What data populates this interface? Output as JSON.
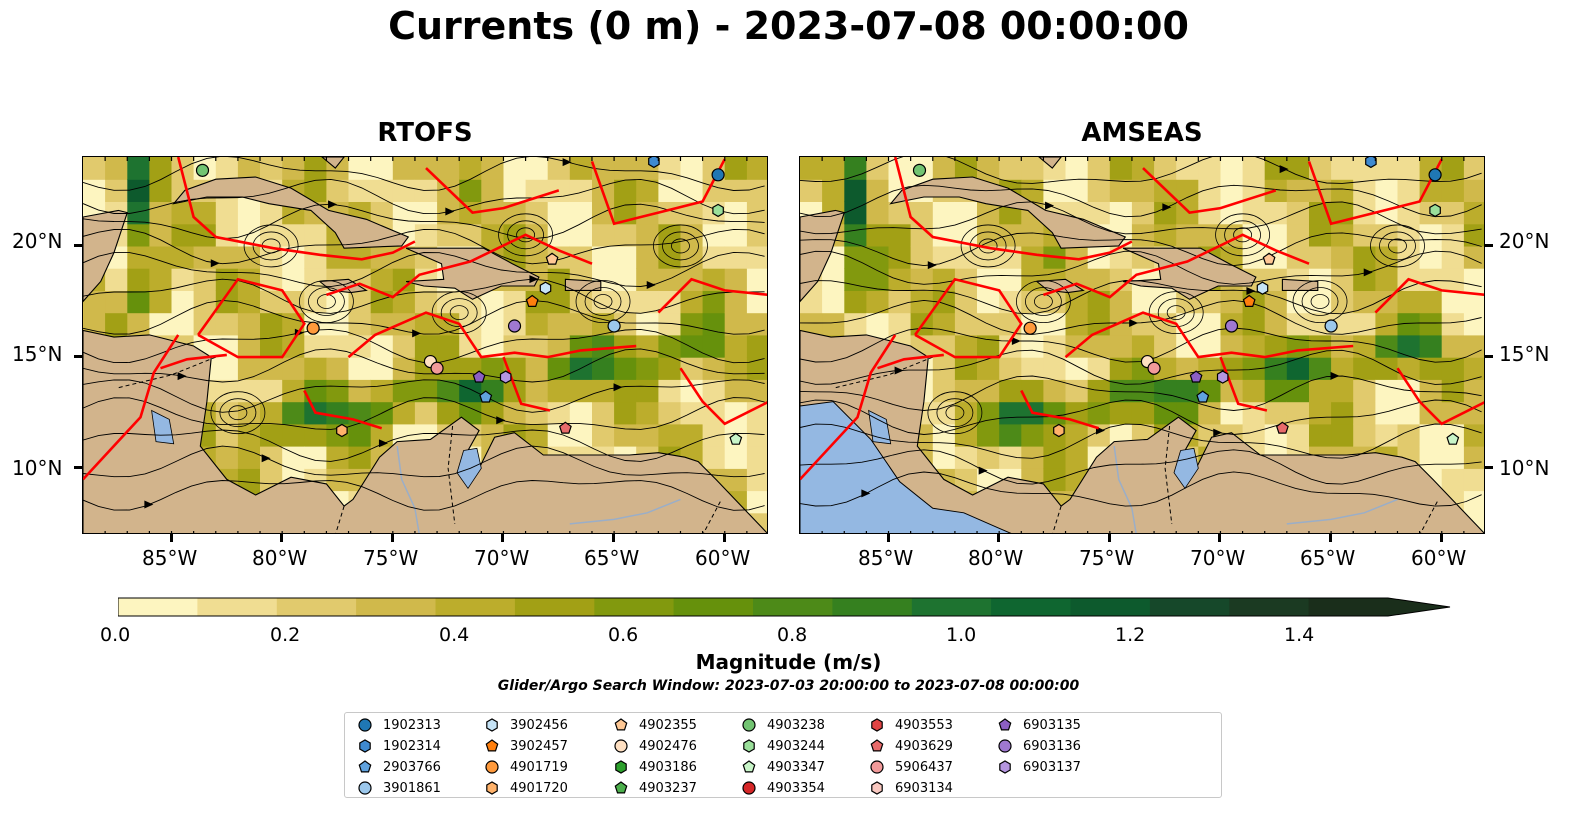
{
  "title": "Currents (0 m) - 2023-07-08 00:00:00",
  "panels": [
    {
      "title": "RTOFS"
    },
    {
      "title": "AMSEAS"
    }
  ],
  "axes": {
    "x_ticks": [
      "85°W",
      "80°W",
      "75°W",
      "70°W",
      "65°W",
      "60°W"
    ],
    "y_ticks": [
      "20°N",
      "15°N",
      "10°N"
    ],
    "lon_range": [
      -89,
      -58
    ],
    "lat_range": [
      7,
      24
    ]
  },
  "colorbar": {
    "label": "Magnitude (m/s)",
    "ticks": [
      "0.0",
      "0.2",
      "0.4",
      "0.6",
      "0.8",
      "1.0",
      "1.2",
      "1.4"
    ],
    "range": [
      0,
      1.5
    ],
    "extend": "max",
    "colors": [
      "#fdf5c0",
      "#f0dd92",
      "#e1ca6d",
      "#d0b94b",
      "#bcad2c",
      "#a2a015",
      "#82990e",
      "#66910c",
      "#4d8a18",
      "#35801f",
      "#1e7330",
      "#0f6630",
      "#0d5a2d",
      "#16482a",
      "#1b3a22",
      "#1a2e1b"
    ]
  },
  "search_window": "Glider/Argo Search Window: 2023-07-03 20:00:00 to 2023-07-08 00:00:00",
  "colors": {
    "land": "#d2b48c",
    "water_fill": "#94b8e2",
    "eez": "#ff0000"
  },
  "legend": [
    {
      "id": "1902313",
      "marker": "circle",
      "color": "#1f77b4"
    },
    {
      "id": "1902314",
      "marker": "hexagon",
      "color": "#3f8ad0"
    },
    {
      "id": "2903766",
      "marker": "pentagon",
      "color": "#60a2de"
    },
    {
      "id": "3901861",
      "marker": "circle",
      "color": "#9cc8ec"
    },
    {
      "id": "3902456",
      "marker": "hexagon",
      "color": "#c6e4f7"
    },
    {
      "id": "3902457",
      "marker": "pentagon",
      "color": "#ff7f0e"
    },
    {
      "id": "4901719",
      "marker": "circle",
      "color": "#ff9a3c"
    },
    {
      "id": "4901720",
      "marker": "hexagon",
      "color": "#ffb26b"
    },
    {
      "id": "4902355",
      "marker": "pentagon",
      "color": "#ffc895"
    },
    {
      "id": "4902476",
      "marker": "circle",
      "color": "#ffe0c2"
    },
    {
      "id": "4903186",
      "marker": "hexagon",
      "color": "#2ca02c"
    },
    {
      "id": "4903237",
      "marker": "pentagon",
      "color": "#4caf4c"
    },
    {
      "id": "4903238",
      "marker": "circle",
      "color": "#72c472"
    },
    {
      "id": "4903244",
      "marker": "hexagon",
      "color": "#9adf9a"
    },
    {
      "id": "4903347",
      "marker": "pentagon",
      "color": "#c8f5c8"
    },
    {
      "id": "4903354",
      "marker": "circle",
      "color": "#d62728"
    },
    {
      "id": "4903553",
      "marker": "hexagon",
      "color": "#e04444"
    },
    {
      "id": "4903629",
      "marker": "pentagon",
      "color": "#e86b6b"
    },
    {
      "id": "5906437",
      "marker": "circle",
      "color": "#f29a9a"
    },
    {
      "id": "6903134",
      "marker": "hexagon",
      "color": "#f9c8c0"
    },
    {
      "id": "6903135",
      "marker": "pentagon",
      "color": "#8c5fc4"
    },
    {
      "id": "6903136",
      "marker": "circle",
      "color": "#9f78d0"
    },
    {
      "id": "6903137",
      "marker": "hexagon",
      "color": "#b596e0"
    }
  ],
  "floats": [
    {
      "id": "1902313",
      "lon": -60.3,
      "lat": 23.2
    },
    {
      "id": "1902314",
      "lon": -63.2,
      "lat": 23.8
    },
    {
      "id": "3901861",
      "lon": -65.0,
      "lat": 16.4
    },
    {
      "id": "3902456",
      "lon": -68.1,
      "lat": 18.1
    },
    {
      "id": "3902457",
      "lon": -68.7,
      "lat": 17.5
    },
    {
      "id": "4901719",
      "lon": -78.6,
      "lat": 16.3
    },
    {
      "id": "4901720",
      "lon": -77.3,
      "lat": 11.7
    },
    {
      "id": "4902355",
      "lon": -67.8,
      "lat": 19.4
    },
    {
      "id": "4902476",
      "lon": -73.3,
      "lat": 14.8
    },
    {
      "id": "4903238",
      "lon": -83.6,
      "lat": 23.4
    },
    {
      "id": "4903244",
      "lon": -60.3,
      "lat": 21.6
    },
    {
      "id": "4903347",
      "lon": -59.5,
      "lat": 11.3
    },
    {
      "id": "4903629",
      "lon": -67.2,
      "lat": 11.8
    },
    {
      "id": "5906437",
      "lon": -73.0,
      "lat": 14.5
    },
    {
      "id": "6903135",
      "lon": -71.1,
      "lat": 14.1
    },
    {
      "id": "6903136",
      "lon": -69.5,
      "lat": 16.4
    },
    {
      "id": "6903137",
      "lon": -69.9,
      "lat": 14.1
    },
    {
      "id": "2903766",
      "lon": -70.8,
      "lat": 13.2
    }
  ]
}
